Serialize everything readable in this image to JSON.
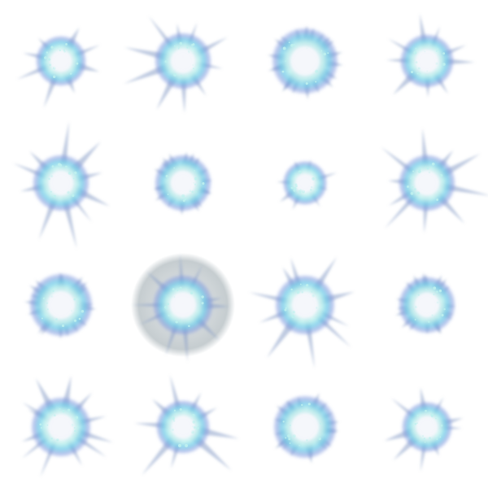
{
  "sprite_sheet": {
    "rows": 4,
    "columns": 4,
    "background": "#ffffff",
    "colors": {
      "core": "#f4f7fb",
      "inner_glow": "#bff1ee",
      "mid_glow": "#6ecbe8",
      "outer_glow": "#7c95dd",
      "ray": "#8aa0c8",
      "halo": "#7f8f96"
    },
    "frames": [
      {
        "name": "burst-1-1",
        "style": "spiky"
      },
      {
        "name": "burst-1-2",
        "style": "spiky"
      },
      {
        "name": "burst-1-3",
        "style": "soft"
      },
      {
        "name": "burst-1-4",
        "style": "spiky"
      },
      {
        "name": "burst-2-1",
        "style": "spiky"
      },
      {
        "name": "burst-2-2",
        "style": "soft"
      },
      {
        "name": "burst-2-3",
        "style": "small"
      },
      {
        "name": "burst-2-4",
        "style": "spiky"
      },
      {
        "name": "burst-3-1",
        "style": "soft"
      },
      {
        "name": "burst-3-2",
        "style": "halo"
      },
      {
        "name": "burst-3-3",
        "style": "spiky"
      },
      {
        "name": "burst-3-4",
        "style": "soft"
      },
      {
        "name": "burst-4-1",
        "style": "spiky"
      },
      {
        "name": "burst-4-2",
        "style": "spiky"
      },
      {
        "name": "burst-4-3",
        "style": "soft"
      },
      {
        "name": "burst-4-4",
        "style": "spiky"
      }
    ]
  }
}
